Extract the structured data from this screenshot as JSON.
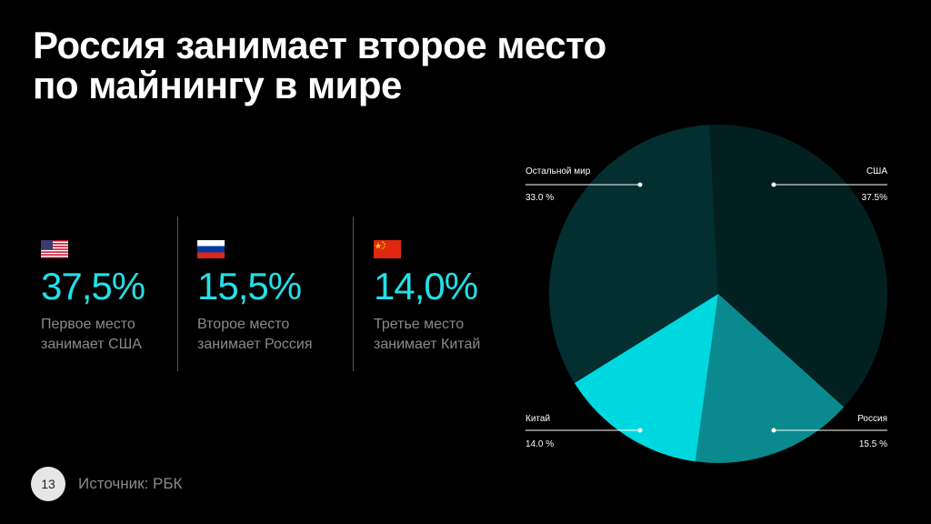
{
  "title": {
    "line1": "Россия занимает второе место",
    "line2": "по майнингу в мире"
  },
  "stats": [
    {
      "flag": "flag-usa",
      "value": "37,5%",
      "desc1": "Первое место",
      "desc2": "занимает США"
    },
    {
      "flag": "flag-russia",
      "value": "15,5%",
      "desc1": "Второе место",
      "desc2": "занимает Россия"
    },
    {
      "flag": "flag-china",
      "value": "14,0%",
      "desc1": "Третье место",
      "desc2": "занимает Китай"
    }
  ],
  "footer": {
    "page_number": "13",
    "source": "Источник: РБК"
  },
  "chart_data": {
    "type": "pie",
    "title": "",
    "slices": [
      {
        "name": "США",
        "label_value": "37.5%",
        "value": 37.5,
        "color": "#02201f"
      },
      {
        "name": "Россия",
        "label_value": "15.5 %",
        "value": 15.5,
        "color": "#0a8a8e"
      },
      {
        "name": "Китай",
        "label_value": "14.0 %",
        "value": 14.0,
        "color": "#00d8e0"
      },
      {
        "name": "Остальной мир",
        "label_value": "33.0 %",
        "value": 33.0,
        "color": "#032f30"
      }
    ]
  }
}
